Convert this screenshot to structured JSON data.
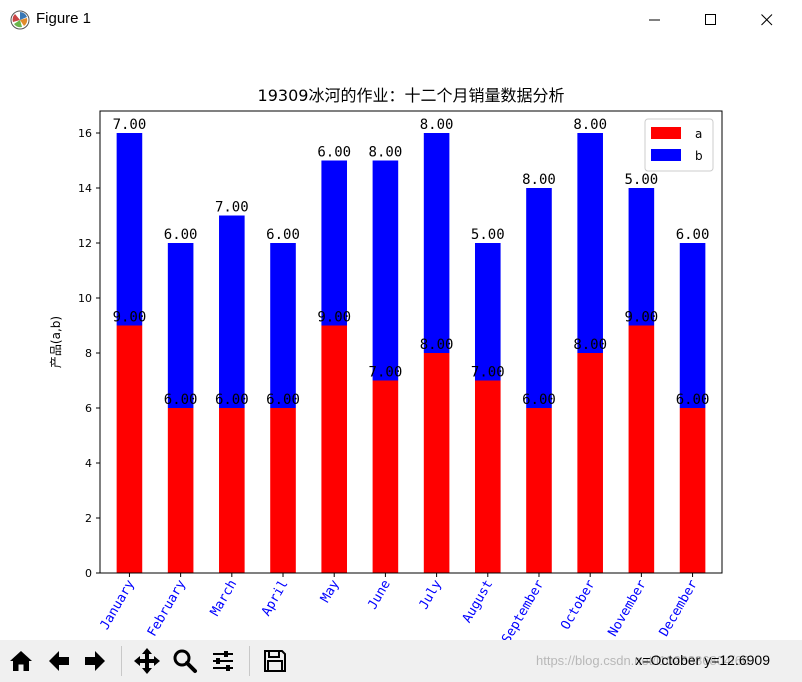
{
  "window": {
    "title": "Figure 1",
    "minimize_icon": "minimize-icon",
    "maximize_icon": "maximize-icon",
    "close_icon": "close-icon"
  },
  "chart_data": {
    "type": "bar",
    "stacked": true,
    "title": "19309冰河的作业：十二个月销量数据分析",
    "xlabel": "",
    "ylabel": "产品(a,b)",
    "ylim": [
      0,
      16.8
    ],
    "yticks": [
      0,
      2,
      4,
      6,
      8,
      10,
      12,
      14,
      16
    ],
    "categories": [
      "January",
      "February",
      "March",
      "April",
      "May",
      "June",
      "July",
      "August",
      "September",
      "October",
      "November",
      "December"
    ],
    "category_label_color": "#0000ff",
    "series": [
      {
        "name": "a",
        "color": "#ff0000",
        "values": [
          9,
          6,
          6,
          6,
          9,
          7,
          8,
          7,
          6,
          8,
          9,
          6
        ],
        "labels": [
          "9.00",
          "6.00",
          "6.00",
          "6.00",
          "9.00",
          "7.00",
          "8.00",
          "7.00",
          "6.00",
          "8.00",
          "9.00",
          "6.00"
        ]
      },
      {
        "name": "b",
        "color": "#0000ff",
        "values": [
          7,
          6,
          7,
          6,
          6,
          8,
          8,
          5,
          8,
          8,
          5,
          6
        ],
        "labels": [
          "7.00",
          "6.00",
          "7.00",
          "6.00",
          "6.00",
          "8.00",
          "8.00",
          "5.00",
          "8.00",
          "8.00",
          "5.00",
          "6.00"
        ]
      }
    ],
    "legend_placement": "upper-right",
    "grid": false
  },
  "toolbar": {
    "icons": [
      "home-icon",
      "back-icon",
      "forward-icon",
      "pan-icon",
      "zoom-icon",
      "configure-icon",
      "save-icon"
    ],
    "coords": "x=October y=12.6909",
    "watermark": "https://blog.csdn.net/l1028386804/66"
  }
}
